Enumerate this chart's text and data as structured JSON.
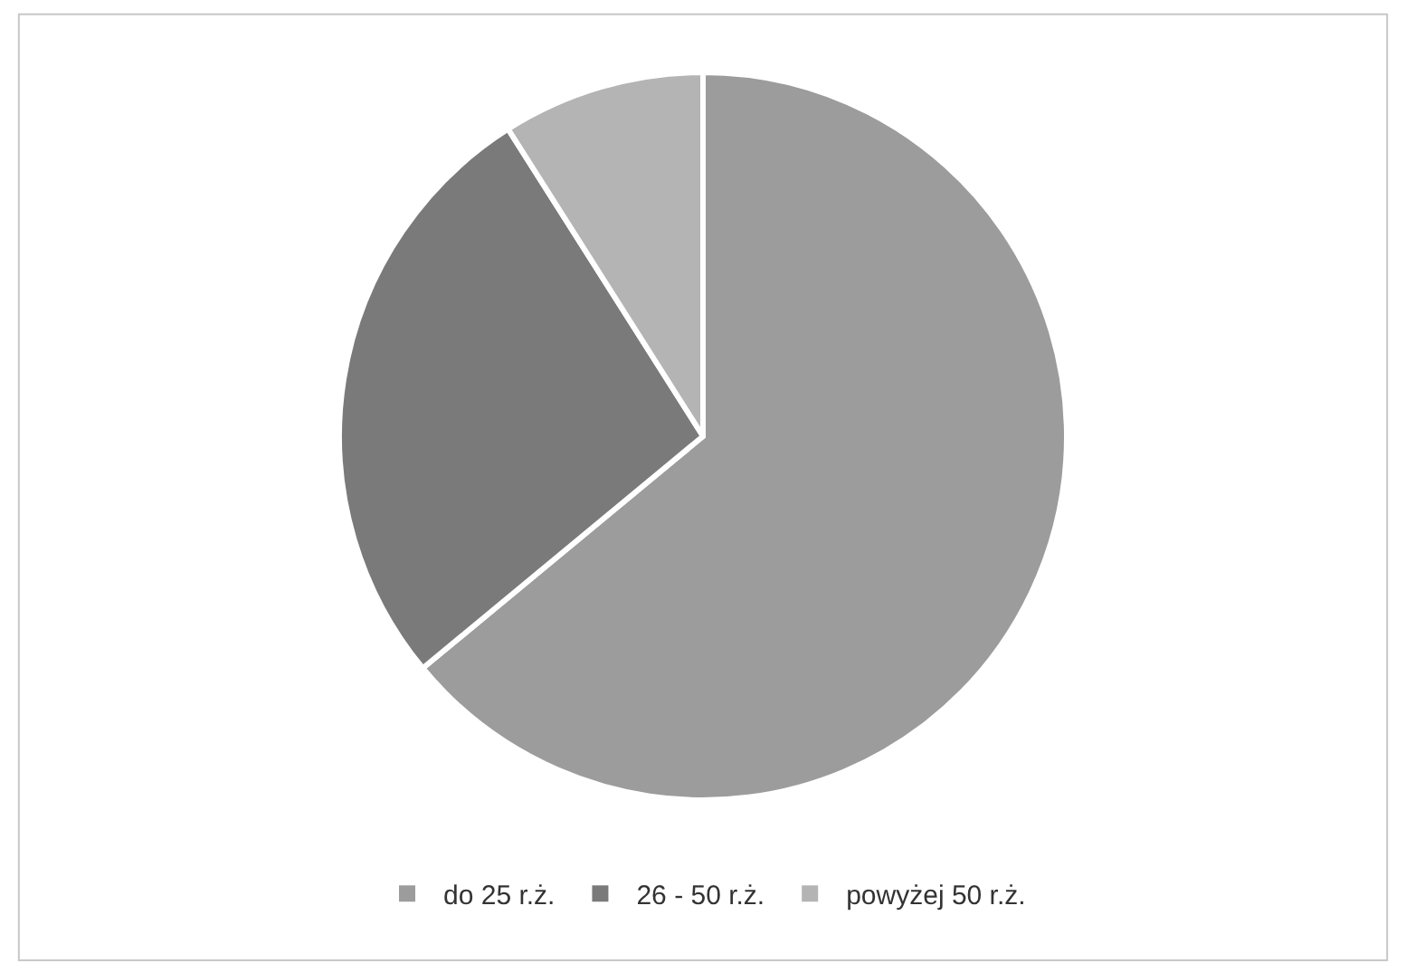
{
  "chart_data": {
    "type": "pie",
    "categories": [
      "do 25 r.ż.",
      "26 - 50 r.ż.",
      "powyżej 50 r.ż."
    ],
    "values": [
      64,
      27,
      9
    ],
    "colors": [
      "#9c9c9c",
      "#7a7a7a",
      "#b4b4b4"
    ],
    "legend": "bottom"
  }
}
